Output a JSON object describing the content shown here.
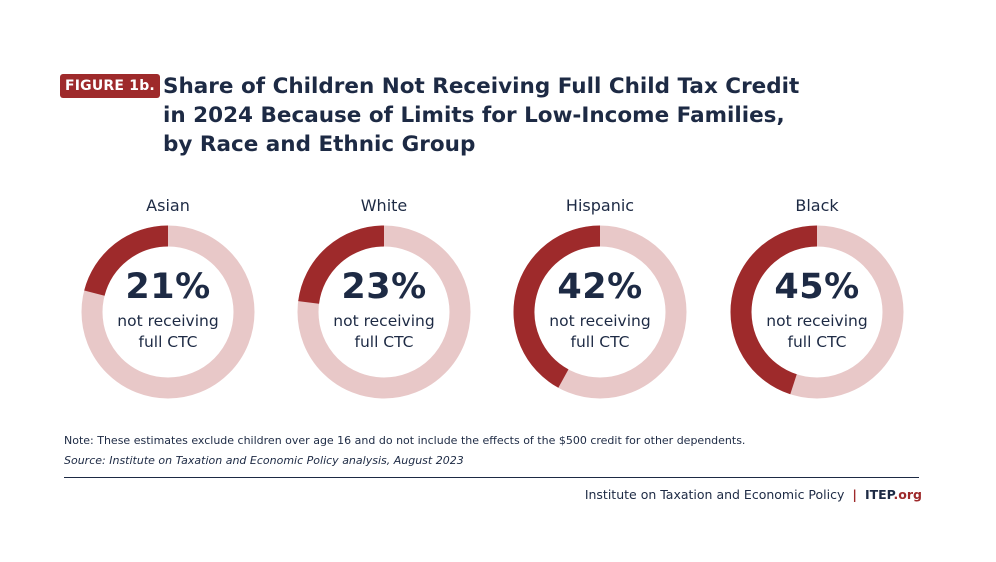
{
  "figure_label": "FIGURE 1b.",
  "title_lines": [
    "Share of Children Not Receiving Full Child Tax Credit",
    "in 2024 Because of Limits for Low-Income Families,",
    "by Race and Ethnic Group"
  ],
  "colors": {
    "accent": "#9e2a2b",
    "remainder": "#e8c8c8",
    "text": "#1d2a44"
  },
  "chart_data": {
    "type": "pie",
    "variant": "donut",
    "categories": [
      "Asian",
      "White",
      "Hispanic",
      "Black"
    ],
    "values": [
      21,
      23,
      42,
      45
    ],
    "unit": "%",
    "center_labels": [
      "21%",
      "23%",
      "42%",
      "45%"
    ],
    "center_sublabel_line1": "not receiving",
    "center_sublabel_line2": "full CTC"
  },
  "note": "Note: These estimates exclude children over age 16 and do not include the effects of the $500 credit for other dependents.",
  "source": "Source: Institute on Taxation and Economic Policy analysis, August 2023",
  "footer": {
    "org_name": "Institute on Taxation and Economic Policy",
    "separator": "|",
    "brand_main": "ITEP",
    "brand_suffix": ".org"
  }
}
